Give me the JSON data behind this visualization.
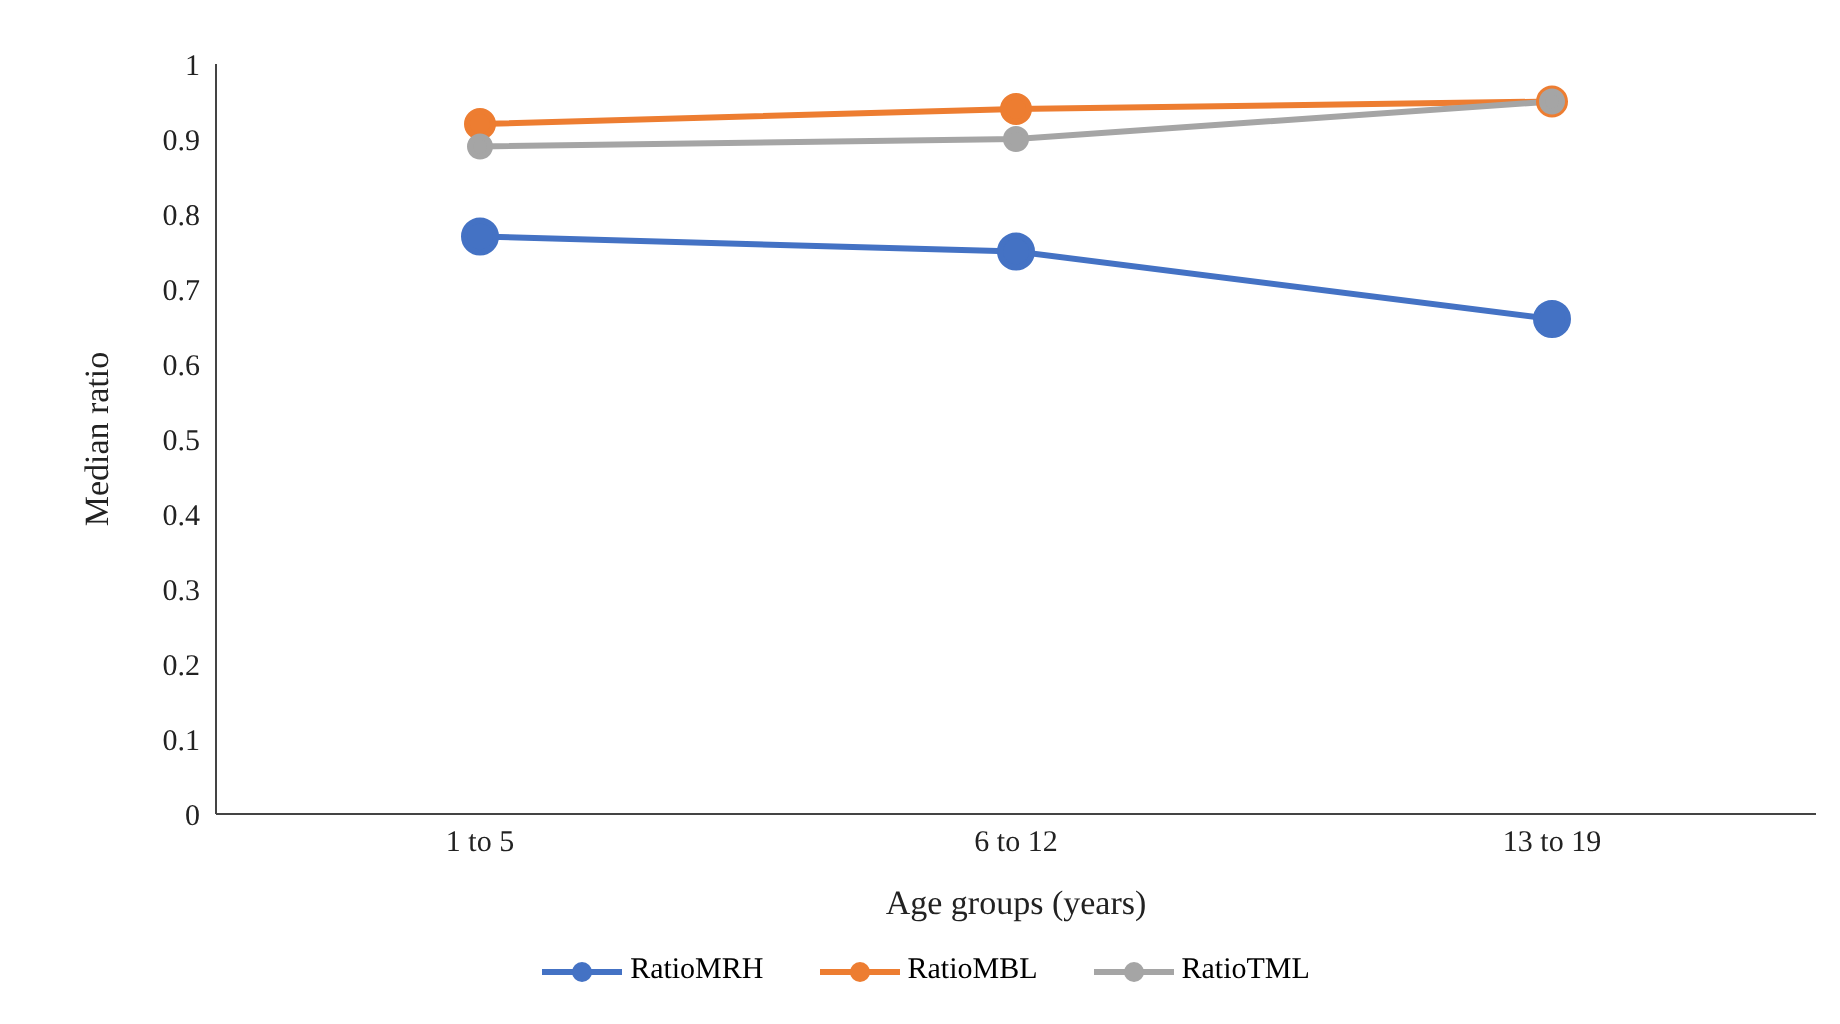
{
  "chart_data": {
    "type": "line",
    "xlabel": "Age groups (years)",
    "ylabel": "Median ratio",
    "categories": [
      "1 to 5",
      "6 to 12",
      "13 to 19"
    ],
    "series": [
      {
        "name": "RatioMRH",
        "color": "#4472c4",
        "values": [
          0.77,
          0.75,
          0.66
        ]
      },
      {
        "name": "RatioMBL",
        "color": "#ed7d31",
        "values": [
          0.92,
          0.94,
          0.95
        ]
      },
      {
        "name": "RatioTML",
        "color": "#a5a5a5",
        "values": [
          0.89,
          0.9,
          0.95
        ]
      }
    ],
    "ylim": [
      0,
      1
    ],
    "yticks": [
      0,
      0.1,
      0.2,
      0.3,
      0.4,
      0.5,
      0.6,
      0.7,
      0.8,
      0.9,
      1
    ],
    "grid": false,
    "legend": "bottom",
    "marker": "circle",
    "line_style": "solid"
  }
}
